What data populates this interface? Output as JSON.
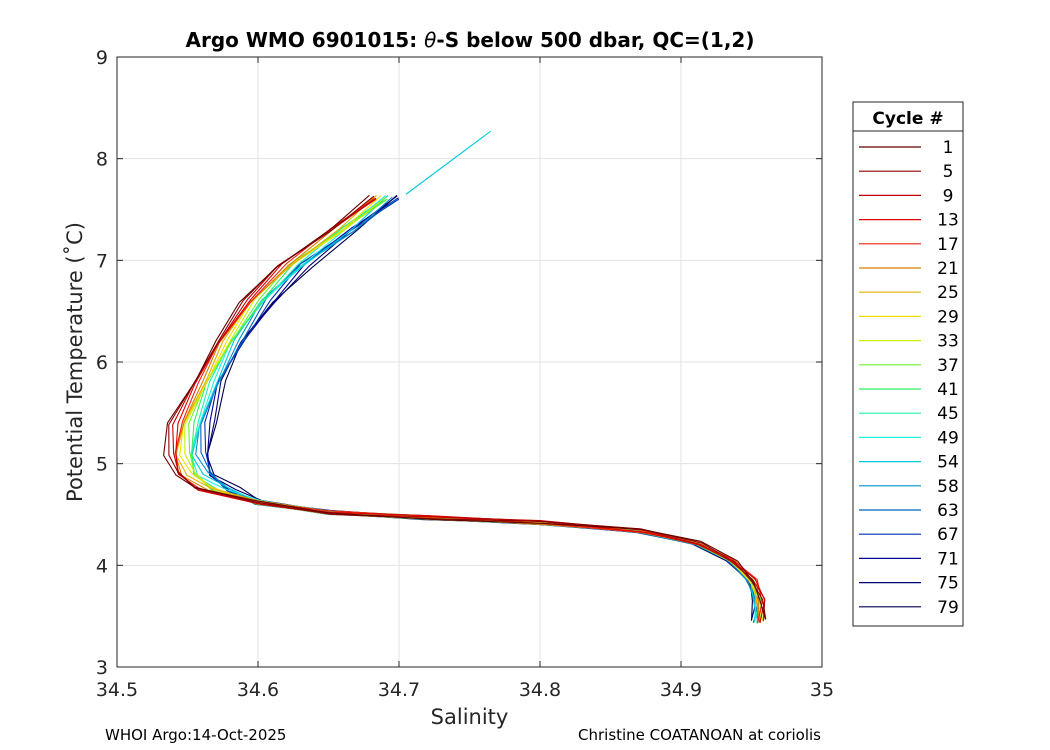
{
  "chart_data": {
    "type": "line",
    "title_prefix": "Argo WMO 6901015: ",
    "title_theta": "θ",
    "title_suffix": "-S below 500 dbar,  QC=(1,2)",
    "xlabel": "Salinity",
    "ylabel": "Potential Temperature (˚C)",
    "xlim": [
      34.5,
      35
    ],
    "ylim": [
      3,
      9
    ],
    "xticks": [
      "34.5",
      "34.6",
      "34.7",
      "34.8",
      "34.9",
      "35"
    ],
    "yticks": [
      "3",
      "4",
      "5",
      "6",
      "7",
      "8",
      "9"
    ],
    "grid": true,
    "legend_title": "Cycle #",
    "legend_position": "right",
    "series": [
      {
        "name": "1",
        "color": "#660000"
      },
      {
        "name": "5",
        "color": "#8c0000"
      },
      {
        "name": "9",
        "color": "#c00000"
      },
      {
        "name": "13",
        "color": "#e00000"
      },
      {
        "name": "17",
        "color": "#f02010"
      },
      {
        "name": "21",
        "color": "#d88000"
      },
      {
        "name": "25",
        "color": "#e0b000"
      },
      {
        "name": "29",
        "color": "#f0e000"
      },
      {
        "name": "33",
        "color": "#c8f000"
      },
      {
        "name": "37",
        "color": "#70f030"
      },
      {
        "name": "41",
        "color": "#30f060"
      },
      {
        "name": "45",
        "color": "#20f0b0"
      },
      {
        "name": "49",
        "color": "#20f0e0"
      },
      {
        "name": "54",
        "color": "#00c8e0"
      },
      {
        "name": "58",
        "color": "#0090d0"
      },
      {
        "name": "63",
        "color": "#0060c0"
      },
      {
        "name": "67",
        "color": "#0030b0"
      },
      {
        "name": "71",
        "color": "#000090"
      },
      {
        "name": "75",
        "color": "#000070"
      },
      {
        "name": "79",
        "color": "#000050"
      }
    ],
    "representative_profile": [
      [
        34.69,
        7.62
      ],
      [
        34.66,
        7.3
      ],
      [
        34.625,
        6.95
      ],
      [
        34.6,
        6.6
      ],
      [
        34.58,
        6.2
      ],
      [
        34.565,
        5.8
      ],
      [
        34.553,
        5.4
      ],
      [
        34.55,
        5.1
      ],
      [
        34.555,
        4.9
      ],
      [
        34.57,
        4.75
      ],
      [
        34.6,
        4.62
      ],
      [
        34.65,
        4.52
      ],
      [
        34.72,
        4.47
      ],
      [
        34.8,
        4.42
      ],
      [
        34.87,
        4.34
      ],
      [
        34.91,
        4.22
      ],
      [
        34.935,
        4.05
      ],
      [
        34.95,
        3.85
      ],
      [
        34.955,
        3.65
      ],
      [
        34.955,
        3.45
      ]
    ],
    "extended_segment": [
      [
        34.705,
        7.65
      ],
      [
        34.765,
        8.27
      ]
    ]
  },
  "footer": {
    "left": "WHOI Argo:14-Oct-2025",
    "right": "Christine COATANOAN at coriolis"
  }
}
